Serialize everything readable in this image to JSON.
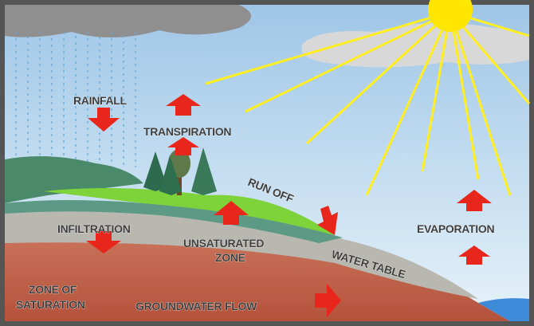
{
  "labels": {
    "rainfall": "RAINFALL",
    "transpiration": "TRANSPIRATION",
    "run_off": "RUN OFF",
    "infiltration": "INFILTRATION",
    "unsaturated_zone": [
      "UNSATURATED",
      "ZONE"
    ],
    "evaporation": "EVAPORATION",
    "water_table": "WATER TABLE",
    "zone_of_saturation": [
      "ZONE OF",
      "SATURATION"
    ],
    "groundwater_flow": "GROUNDWATER FLOW"
  }
}
